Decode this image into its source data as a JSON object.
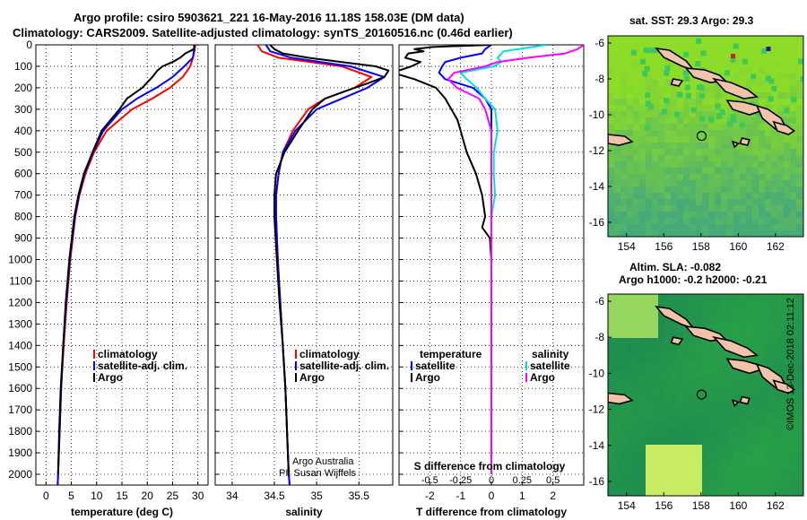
{
  "header": {
    "line1": "Argo profile: csiro 5903621_221 16-May-2016 11.18S 158.03E (DM data)",
    "line2": "Climatology: CARS2009. Satellite-adjusted climatology: synTS_20160516.nc (0.46d earlier)"
  },
  "sst_title": "sat. SST: 29.3 Argo: 29.3",
  "altim_title1": "Altim. SLA: -0.082",
  "altim_title2": "Argo h1000: -0.2 h2000: -0.21",
  "credit_line1": "Argo Australia",
  "credit_line2": "PI: Susan Wijffels",
  "imos_stamp": "©IMOS 13-Dec-2018 02:11:12",
  "diff_panel_upper_label": "S difference from climatology",
  "colors": {
    "climatology": "#ff0000",
    "satellite": "#0000ff",
    "argo": "#000000",
    "sat_salinity": "#00e0e0",
    "argo_salinity": "#ff00ff"
  },
  "chart_data": [
    {
      "type": "line",
      "title": "",
      "xlabel": "temperature (deg C)",
      "ylabel": "",
      "xlim": [
        -2,
        32
      ],
      "ylim": [
        2050,
        0
      ],
      "xticks": [
        0,
        5,
        10,
        15,
        20,
        25,
        30
      ],
      "yticks": [
        0,
        100,
        200,
        300,
        400,
        500,
        600,
        700,
        800,
        900,
        1000,
        1100,
        1200,
        1300,
        1400,
        1500,
        1600,
        1700,
        1800,
        1900,
        2000
      ],
      "legend": [
        "climatology",
        "satellite-adj. clim.",
        "Argo"
      ],
      "series": [
        {
          "name": "climatology",
          "color": "#ff0000",
          "depth": [
            0,
            30,
            60,
            100,
            150,
            200,
            250,
            300,
            400,
            500,
            600,
            700,
            800,
            1000,
            1200,
            1400,
            1600,
            1800,
            2000,
            2050
          ],
          "values": [
            29.5,
            29.3,
            29.0,
            28.5,
            27.0,
            24.5,
            21.0,
            17.0,
            12.0,
            9.5,
            7.8,
            6.6,
            5.8,
            4.8,
            4.1,
            3.5,
            3.0,
            2.7,
            2.4,
            2.3
          ]
        },
        {
          "name": "satellite-adj. clim.",
          "color": "#0000ff",
          "depth": [
            0,
            30,
            60,
            100,
            150,
            200,
            250,
            300,
            400,
            500,
            600,
            700,
            800,
            1000,
            1200,
            1400,
            1600,
            1800,
            2000,
            2050
          ],
          "values": [
            29.3,
            29.2,
            29.0,
            27.3,
            25.0,
            21.8,
            18.0,
            15.0,
            11.3,
            9.3,
            7.6,
            6.5,
            5.7,
            4.7,
            4.0,
            3.4,
            3.0,
            2.7,
            2.4,
            2.3
          ]
        },
        {
          "name": "Argo",
          "color": "#000000",
          "depth": [
            0,
            20,
            40,
            60,
            80,
            100,
            120,
            150,
            200,
            250,
            300,
            400,
            500,
            600,
            700,
            800,
            1000,
            1200,
            1400,
            1600,
            1800,
            2000
          ],
          "values": [
            29.3,
            29.2,
            27.5,
            26.5,
            25.0,
            23.0,
            22.0,
            21.0,
            19.0,
            16.0,
            14.5,
            11.0,
            9.2,
            7.5,
            6.4,
            5.6,
            4.6,
            3.9,
            3.4,
            2.9,
            2.6,
            2.4
          ]
        }
      ]
    },
    {
      "type": "line",
      "title": "",
      "xlabel": "salinity",
      "ylabel": "",
      "xlim": [
        33.8,
        35.9
      ],
      "ylim": [
        2050,
        0
      ],
      "xticks": [
        34,
        34.5,
        35,
        35.5
      ],
      "legend": [
        "climatology",
        "satellite-adj. clim.",
        "Argo"
      ],
      "series": [
        {
          "name": "climatology",
          "color": "#ff0000",
          "depth": [
            0,
            30,
            60,
            100,
            150,
            200,
            250,
            300,
            400,
            500,
            600,
            700,
            800,
            1000,
            1200,
            1400,
            1600,
            1800,
            2000,
            2050
          ],
          "values": [
            34.3,
            34.35,
            34.55,
            35.3,
            35.65,
            35.45,
            35.1,
            34.9,
            34.72,
            34.6,
            34.55,
            34.52,
            34.52,
            34.54,
            34.57,
            34.6,
            34.63,
            34.65,
            34.67,
            34.68
          ]
        },
        {
          "name": "satellite-adj. clim.",
          "color": "#0000ff",
          "depth": [
            0,
            30,
            60,
            100,
            150,
            200,
            250,
            300,
            400,
            500,
            600,
            700,
            800,
            1000,
            1200,
            1400,
            1600,
            1800,
            2000,
            2050
          ],
          "values": [
            34.4,
            34.45,
            34.7,
            35.4,
            35.8,
            35.6,
            35.3,
            35.0,
            34.75,
            34.6,
            34.55,
            34.52,
            34.52,
            34.54,
            34.57,
            34.6,
            34.63,
            34.65,
            34.67,
            34.68
          ]
        },
        {
          "name": "Argo",
          "color": "#000000",
          "depth": [
            0,
            20,
            40,
            60,
            80,
            100,
            120,
            150,
            180,
            200,
            250,
            300,
            400,
            500,
            600,
            700,
            800,
            1000,
            1200,
            1400,
            1600,
            1800,
            2000
          ],
          "values": [
            34.45,
            34.5,
            34.6,
            34.9,
            35.3,
            35.7,
            35.85,
            35.8,
            35.6,
            35.45,
            35.1,
            34.95,
            34.78,
            34.62,
            34.52,
            34.5,
            34.5,
            34.53,
            34.56,
            34.6,
            34.63,
            34.65,
            34.67
          ]
        }
      ]
    },
    {
      "type": "line",
      "title": "",
      "xlabel": "T difference from climatology",
      "ylabel": "",
      "xlim": [
        -3,
        3
      ],
      "ylim": [
        2050,
        0
      ],
      "xticks": [
        -2,
        -1,
        0,
        1,
        2
      ],
      "upper_xlabel": "S difference from climatology",
      "upper_xlim": [
        -0.75,
        0.75
      ],
      "upper_xticks": [
        -0.5,
        -0.25,
        0,
        0.25,
        0.5
      ],
      "legend_temperature": [
        "temperature",
        "satellite",
        "Argo"
      ],
      "legend_salinity": [
        "salinity",
        "satellite",
        "Argo"
      ],
      "series": [
        {
          "name": "temperature satellite",
          "color": "#0000ff",
          "depth": [
            0,
            20,
            40,
            60,
            80,
            100,
            130,
            160,
            200,
            250,
            300,
            400,
            500,
            600,
            700,
            800,
            1000,
            1200,
            1500,
            2000
          ],
          "values": [
            0.0,
            -0.2,
            -0.3,
            -1.0,
            -1.5,
            -1.6,
            -1.7,
            -1.5,
            -0.6,
            -0.2,
            0.0,
            0.0,
            0.0,
            0.0,
            0.0,
            0.0,
            0.0,
            0.0,
            0.0,
            0.0
          ]
        },
        {
          "name": "temperature Argo",
          "color": "#000000",
          "depth": [
            0,
            10,
            20,
            30,
            40,
            60,
            80,
            100,
            130,
            160,
            200,
            250,
            300,
            350,
            400,
            450,
            500,
            600,
            700,
            800,
            850,
            900,
            1000,
            1200,
            1500,
            2000
          ],
          "values": [
            0.0,
            -1.9,
            -2.5,
            -2.2,
            -2.7,
            -2.8,
            -2.3,
            -2.6,
            -3.2,
            -2.5,
            -1.8,
            -1.5,
            -1.3,
            -1.1,
            -1.0,
            -0.9,
            -0.8,
            -0.5,
            -0.3,
            -0.2,
            -0.3,
            -0.05,
            0.0,
            0.0,
            0.0,
            0.0
          ]
        },
        {
          "name": "salinity satellite",
          "color": "#00e0e0",
          "depth": [
            0,
            30,
            60,
            80,
            100,
            130,
            160,
            200,
            250,
            300,
            400,
            500,
            600,
            700,
            800,
            900,
            1000,
            1200,
            1500,
            2000
          ],
          "values": [
            0.45,
            0.1,
            0.05,
            0.08,
            0.02,
            -0.25,
            -0.2,
            -0.12,
            -0.05,
            0.03,
            0.05,
            0.02,
            0.02,
            0.03,
            0.0,
            0.0,
            0.0,
            0.0,
            0.0,
            0.0
          ]
        },
        {
          "name": "salinity Argo",
          "color": "#ff00ff",
          "depth": [
            0,
            20,
            40,
            60,
            80,
            100,
            130,
            160,
            200,
            250,
            300,
            400,
            500,
            600,
            700,
            800,
            900,
            1000,
            1200,
            1500,
            2000
          ],
          "values": [
            0.75,
            0.7,
            0.6,
            0.3,
            0.05,
            -0.05,
            -0.3,
            -0.35,
            -0.28,
            -0.1,
            -0.05,
            0.0,
            0.0,
            0.0,
            0.0,
            0.0,
            0.0,
            0.0,
            0.0,
            0.0,
            0.0
          ]
        }
      ]
    },
    {
      "type": "heatmap",
      "title": "sat. SST: 29.3 Argo: 29.3",
      "xlim": [
        153,
        163.5
      ],
      "ylim": [
        -16.8,
        -5.6
      ],
      "xticks": [
        154,
        156,
        158,
        160,
        162
      ],
      "yticks": [
        -6,
        -8,
        -10,
        -12,
        -14,
        -16
      ],
      "argo_position": [
        158.03,
        -11.18
      ]
    },
    {
      "type": "heatmap",
      "title": "Altim. SLA: -0.082",
      "xlim": [
        153,
        163.5
      ],
      "ylim": [
        -16.8,
        -5.6
      ],
      "xticks": [
        154,
        156,
        158,
        160,
        162
      ],
      "yticks": [
        -6,
        -8,
        -10,
        -12,
        -14,
        -16
      ],
      "argo_position": [
        158.03,
        -11.18
      ]
    }
  ]
}
